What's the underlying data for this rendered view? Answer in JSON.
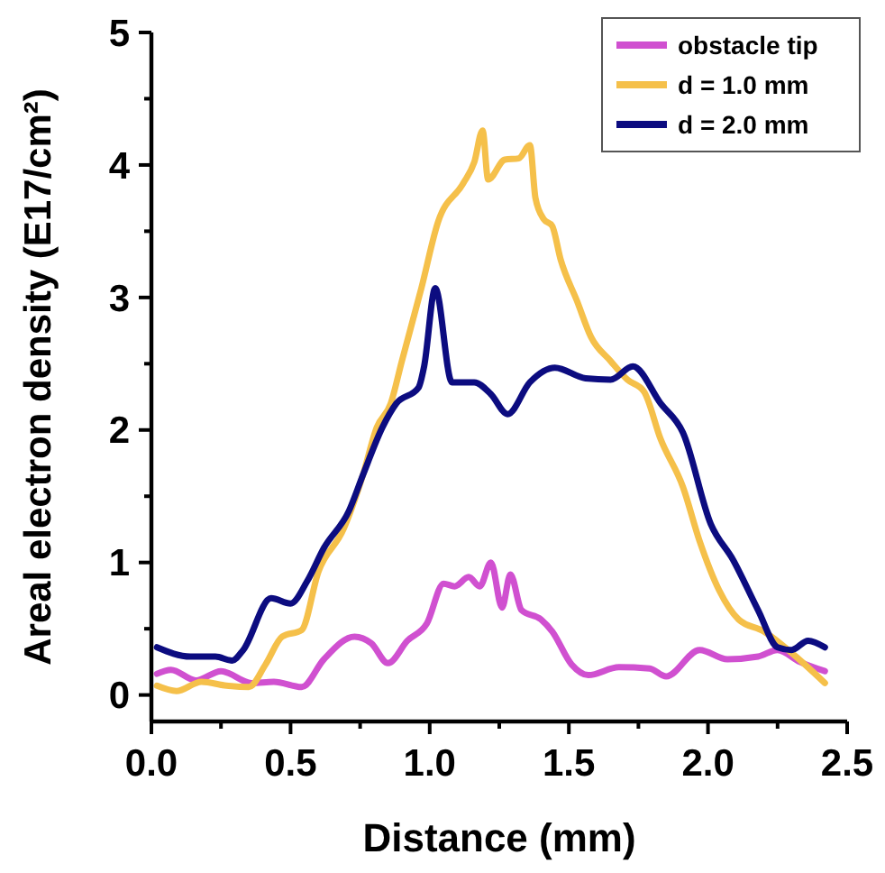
{
  "chart_data": {
    "type": "line",
    "xlabel": "Distance (mm)",
    "ylabel": "Areal electron density (E17/cm²)",
    "xlim": [
      0,
      2.5
    ],
    "ylim": [
      -0.2,
      5
    ],
    "xticks": [
      {
        "value": 0,
        "label": "0.0"
      },
      {
        "value": 0.25,
        "label": null
      },
      {
        "value": 0.5,
        "label": "0.5"
      },
      {
        "value": 0.75,
        "label": null
      },
      {
        "value": 1,
        "label": "1.0"
      },
      {
        "value": 1.25,
        "label": null
      },
      {
        "value": 1.5,
        "label": "1.5"
      },
      {
        "value": 1.75,
        "label": null
      },
      {
        "value": 2,
        "label": "2.0"
      },
      {
        "value": 2.25,
        "label": null
      },
      {
        "value": 2.5,
        "label": "2.5"
      }
    ],
    "yticks": [
      0,
      {
        "value": 0.5,
        "label": null
      },
      1,
      {
        "value": 1.5,
        "label": null
      },
      2,
      {
        "value": 2.5,
        "label": null
      },
      3,
      {
        "value": 3.5,
        "label": null
      },
      4,
      {
        "value": 4.5,
        "label": null
      },
      5
    ],
    "grid": false,
    "legend": "top right",
    "line_style": "solid",
    "marker": "none",
    "series": [
      {
        "name": "obstacle tip",
        "color": "#d050d0",
        "x": [
          0.02,
          0.07,
          0.16,
          0.25,
          0.36,
          0.44,
          0.54,
          0.62,
          0.73,
          0.79,
          0.85,
          0.92,
          0.99,
          1.05,
          1.09,
          1.14,
          1.18,
          1.22,
          1.26,
          1.29,
          1.33,
          1.4,
          1.44,
          1.51,
          1.57,
          1.68,
          1.79,
          1.85,
          1.97,
          2.07,
          2.18,
          2.25,
          2.33,
          2.42
        ],
        "values": [
          0.16,
          0.19,
          0.11,
          0.18,
          0.09,
          0.1,
          0.06,
          0.27,
          0.44,
          0.39,
          0.24,
          0.41,
          0.54,
          0.84,
          0.82,
          0.89,
          0.82,
          1.0,
          0.66,
          0.91,
          0.64,
          0.57,
          0.48,
          0.23,
          0.15,
          0.21,
          0.2,
          0.14,
          0.34,
          0.27,
          0.29,
          0.34,
          0.25,
          0.18
        ]
      },
      {
        "name": "d = 1.0 mm",
        "color": "#f5c04a",
        "x": [
          0.02,
          0.09,
          0.18,
          0.27,
          0.35,
          0.41,
          0.47,
          0.54,
          0.6,
          0.69,
          0.76,
          0.81,
          0.86,
          0.9,
          0.97,
          1.03,
          1.12,
          1.16,
          1.19,
          1.21,
          1.27,
          1.32,
          1.36,
          1.38,
          1.41,
          1.44,
          1.47,
          1.53,
          1.58,
          1.65,
          1.71,
          1.77,
          1.83,
          1.91,
          1.97,
          2.04,
          2.11,
          2.2,
          2.31,
          2.42
        ],
        "values": [
          0.07,
          0.03,
          0.1,
          0.07,
          0.06,
          0.23,
          0.44,
          0.49,
          0.93,
          1.25,
          1.66,
          2.02,
          2.2,
          2.52,
          3.07,
          3.57,
          3.86,
          4.02,
          4.26,
          3.89,
          4.04,
          4.05,
          4.15,
          3.75,
          3.59,
          3.54,
          3.29,
          2.97,
          2.7,
          2.52,
          2.38,
          2.29,
          1.93,
          1.57,
          1.16,
          0.79,
          0.57,
          0.48,
          0.3,
          0.09
        ]
      },
      {
        "name": "d = 2.0 mm",
        "color": "#0c0c80",
        "x": [
          0.02,
          0.14,
          0.23,
          0.29,
          0.33,
          0.43,
          0.5,
          0.56,
          0.62,
          0.71,
          0.76,
          0.83,
          0.88,
          0.96,
          0.98,
          1.02,
          1.08,
          1.16,
          1.22,
          1.28,
          1.36,
          1.45,
          1.56,
          1.65,
          1.73,
          1.83,
          1.91,
          2.01,
          2.09,
          2.18,
          2.25,
          2.3,
          2.36,
          2.42
        ],
        "values": [
          0.36,
          0.29,
          0.29,
          0.26,
          0.34,
          0.73,
          0.69,
          0.86,
          1.11,
          1.39,
          1.66,
          2.02,
          2.2,
          2.32,
          2.48,
          3.07,
          2.36,
          2.36,
          2.27,
          2.12,
          2.36,
          2.47,
          2.39,
          2.38,
          2.48,
          2.2,
          1.98,
          1.29,
          1.02,
          0.64,
          0.36,
          0.34,
          0.41,
          0.36
        ]
      }
    ]
  }
}
